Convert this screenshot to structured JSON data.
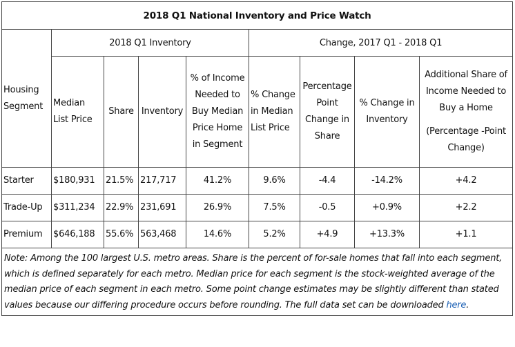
{
  "table": {
    "title": "2018 Q1 National Inventory and Price Watch",
    "groups": {
      "inventory": "2018 Q1 Inventory",
      "change": "Change, 2017 Q1 - 2018 Q1"
    },
    "headers": {
      "segment": "Housing Segment",
      "median_list_price": "Median List Price",
      "share": "Share",
      "inventory": "Inventory",
      "pct_income": "% of Income Needed to Buy Median Price Home in Segment",
      "pct_change_median": "% Change in Median List Price",
      "pp_change_share": "Percentage Point Change in Share",
      "pct_change_inventory": "% Change in Inventory",
      "additional_share_line1": "Additional Share of Income Needed to Buy a Home",
      "additional_share_line2": "(Percentage -Point Change)"
    },
    "rows": [
      {
        "segment": "Starter",
        "median_list_price": "$180,931",
        "share": "21.5%",
        "inventory": "217,717",
        "pct_income": "41.2%",
        "pct_change_median": "9.6%",
        "pp_change_share": "-4.4",
        "pct_change_inventory": "-14.2%",
        "additional_share": "+4.2"
      },
      {
        "segment": "Trade-Up",
        "median_list_price": "$311,234",
        "share": "22.9%",
        "inventory": "231,691",
        "pct_income": "26.9%",
        "pct_change_median": "7.5%",
        "pp_change_share": "-0.5",
        "pct_change_inventory": "+0.9%",
        "additional_share": "+2.2"
      },
      {
        "segment": "Premium",
        "median_list_price": "$646,188",
        "share": "55.6%",
        "inventory": "563,468",
        "pct_income": "14.6%",
        "pct_change_median": "5.2%",
        "pp_change_share": "+4.9",
        "pct_change_inventory": "+13.3%",
        "additional_share": "+1.1"
      }
    ],
    "note": {
      "text": "Note: Among the 100 largest U.S. metro areas. Share is the percent of for-sale homes that fall into each segment, which is defined separately for each metro. Median price for each segment is the stock-weighted average of the median price of each segment in each metro. Some point change estimates may be slightly different than stated values because our differing procedure occurs before rounding. The full data set can be downloaded ",
      "link_text": "here",
      "end": "."
    }
  }
}
